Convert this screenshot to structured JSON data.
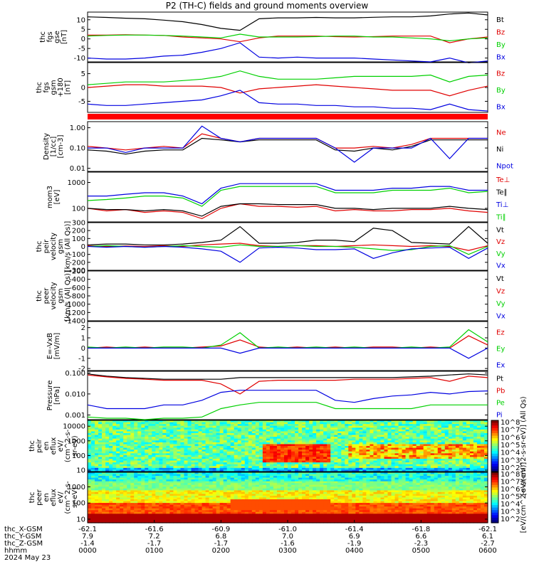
{
  "title": "P2 (TH-C) fields and ground moments overview",
  "chart_data": [
    {
      "id": "fgs_gse",
      "type": "line",
      "ylabel": [
        "thc",
        "fgs",
        "gse",
        "[nT]"
      ],
      "ylim": [
        -12,
        14
      ],
      "yticks": [
        {
          "v": 10,
          "label": "10"
        },
        {
          "v": 5,
          "label": "5"
        },
        {
          "v": 0,
          "label": "0"
        },
        {
          "v": -5,
          "label": "-5"
        },
        {
          "v": -10,
          "label": "-10"
        }
      ],
      "series": [
        {
          "name": "Bt",
          "color": "#000000",
          "values": [
            11.5,
            11.2,
            10.8,
            10.5,
            9.8,
            9.0,
            7.5,
            5.5,
            4.5,
            10.5,
            11.0,
            11.0,
            11.2,
            11.0,
            11.0,
            11.3,
            11.5,
            11.5,
            12.0,
            13.0,
            13.5,
            12.5
          ]
        },
        {
          "name": "Bz",
          "color": "#e00000",
          "values": [
            2.0,
            2.0,
            2.2,
            2.0,
            1.8,
            1.0,
            0.5,
            0.0,
            -1.5,
            0.5,
            1.5,
            1.5,
            1.5,
            1.2,
            1.0,
            1.2,
            1.5,
            1.5,
            1.5,
            -2.0,
            0.0,
            1.0
          ]
        },
        {
          "name": "By",
          "color": "#00d000",
          "values": [
            1.5,
            1.8,
            2.0,
            2.0,
            1.8,
            1.5,
            1.0,
            0.5,
            2.5,
            1.0,
            1.0,
            1.0,
            1.2,
            1.5,
            1.5,
            1.0,
            1.0,
            0.5,
            0.0,
            -1.0,
            0.0,
            0.5
          ]
        },
        {
          "name": "Bx",
          "color": "#0000e0",
          "values": [
            -10.0,
            -10.5,
            -10.5,
            -10.0,
            -9.0,
            -8.5,
            -7.0,
            -5.0,
            -2.0,
            -9.5,
            -10.0,
            -9.5,
            -10.0,
            -10.0,
            -10.0,
            -10.5,
            -11.0,
            -11.5,
            -12.0,
            -10.0,
            -12.5,
            -11.5
          ]
        }
      ]
    },
    {
      "id": "fgs_gsm",
      "type": "line",
      "ylabel": [
        "thc",
        "fgs",
        "gsm",
        "+180",
        "[nT]"
      ],
      "ylim": [
        -9,
        9
      ],
      "yticks": [
        {
          "v": 5,
          "label": "5"
        },
        {
          "v": 0,
          "label": "0"
        },
        {
          "v": -5,
          "label": "-5"
        }
      ],
      "series": [
        {
          "name": "Bz",
          "color": "#e00000",
          "values": [
            0.0,
            0.5,
            1.0,
            1.0,
            0.5,
            0.5,
            0.5,
            0.0,
            -2.0,
            -0.5,
            0.0,
            0.5,
            1.0,
            0.5,
            0.0,
            -0.5,
            -1.0,
            -1.0,
            -1.0,
            -3.0,
            -1.0,
            0.5
          ]
        },
        {
          "name": "By",
          "color": "#00d000",
          "values": [
            1.0,
            1.5,
            2.0,
            2.0,
            2.0,
            2.5,
            3.0,
            4.0,
            6.0,
            4.0,
            3.0,
            3.0,
            3.0,
            3.5,
            4.0,
            4.0,
            4.0,
            4.0,
            4.5,
            2.0,
            4.0,
            4.5
          ]
        },
        {
          "name": "Bx",
          "color": "#0000e0",
          "values": [
            -6.0,
            -6.5,
            -6.5,
            -6.0,
            -5.5,
            -5.0,
            -4.5,
            -3.0,
            -1.0,
            -5.5,
            -6.0,
            -6.0,
            -6.5,
            -6.5,
            -7.0,
            -7.0,
            -7.5,
            -7.5,
            -8.0,
            -6.0,
            -8.0,
            -8.5
          ]
        }
      ]
    },
    {
      "id": "density",
      "type": "line",
      "ylabel": [
        "Density",
        "[1/cc]",
        "[cm-3]"
      ],
      "yscale": "log",
      "ylim": [
        0.007,
        2.0
      ],
      "yticks": [
        {
          "v": 1.0,
          "label": "1.00"
        },
        {
          "v": 0.1,
          "label": "0.10"
        },
        {
          "v": 0.01,
          "label": "0.01"
        }
      ],
      "series": [
        {
          "name": "Ne",
          "color": "#e00000",
          "values": [
            0.12,
            0.1,
            0.08,
            0.1,
            0.12,
            0.1,
            0.5,
            0.3,
            0.2,
            0.3,
            0.3,
            0.3,
            0.3,
            0.1,
            0.1,
            0.12,
            0.1,
            0.15,
            0.3,
            0.3,
            0.3,
            0.3
          ]
        },
        {
          "name": "Ni",
          "color": "#000000",
          "values": [
            0.08,
            0.07,
            0.05,
            0.07,
            0.08,
            0.08,
            0.3,
            0.25,
            0.2,
            0.25,
            0.25,
            0.25,
            0.25,
            0.08,
            0.07,
            0.1,
            0.08,
            0.12,
            0.25,
            0.25,
            0.25,
            0.25
          ]
        },
        {
          "name": "Npot",
          "color": "#0000e0",
          "values": [
            0.1,
            0.1,
            0.06,
            0.1,
            0.1,
            0.1,
            1.2,
            0.3,
            0.2,
            0.3,
            0.3,
            0.3,
            0.3,
            0.1,
            0.02,
            0.1,
            0.1,
            0.1,
            0.3,
            0.03,
            0.3,
            0.3
          ]
        }
      ]
    },
    {
      "id": "temperature",
      "type": "line",
      "ylabel": [
        "mom3",
        "[eV]"
      ],
      "yscale": "log",
      "ylim": [
        30,
        2500
      ],
      "yticks": [
        {
          "v": 1000,
          "label": "1000"
        },
        {
          "v": 100,
          "label": "100"
        }
      ],
      "series": [
        {
          "name": "Te⊥",
          "color": "#e00000",
          "values": [
            100,
            80,
            90,
            70,
            80,
            70,
            40,
            100,
            150,
            120,
            120,
            110,
            120,
            80,
            90,
            80,
            80,
            90,
            90,
            100,
            80,
            70
          ]
        },
        {
          "name": "Te∥",
          "color": "#000000",
          "values": [
            100,
            90,
            90,
            80,
            90,
            80,
            50,
            120,
            150,
            150,
            140,
            140,
            140,
            100,
            100,
            90,
            100,
            100,
            100,
            120,
            100,
            90
          ]
        },
        {
          "name": "Ti⊥",
          "color": "#0000e0",
          "values": [
            300,
            300,
            350,
            400,
            400,
            300,
            150,
            600,
            900,
            900,
            900,
            900,
            900,
            500,
            500,
            500,
            600,
            600,
            700,
            700,
            500,
            500
          ]
        },
        {
          "name": "Ti∥",
          "color": "#00d000",
          "values": [
            200,
            220,
            250,
            300,
            300,
            250,
            120,
            500,
            700,
            700,
            700,
            700,
            700,
            400,
            400,
            400,
            500,
            500,
            500,
            600,
            400,
            450
          ]
        }
      ]
    },
    {
      "id": "peir_velocity",
      "type": "line",
      "ylabel": [
        "thc",
        "peir",
        "velocity",
        "gsm",
        "[km/s (All Qs)]"
      ],
      "ylim": [
        -300,
        300
      ],
      "yticks": [
        {
          "v": 300,
          "label": "300"
        },
        {
          "v": 200,
          "label": "200"
        },
        {
          "v": 100,
          "label": "100"
        },
        {
          "v": 0,
          "label": "0"
        },
        {
          "v": -100,
          "label": "-100"
        },
        {
          "v": -200,
          "label": "-200"
        },
        {
          "v": -300,
          "label": "-300"
        }
      ],
      "series": [
        {
          "name": "Vt",
          "color": "#000000",
          "values": [
            20,
            30,
            30,
            20,
            20,
            30,
            50,
            80,
            250,
            40,
            40,
            50,
            80,
            80,
            60,
            230,
            200,
            50,
            40,
            30,
            250,
            40
          ]
        },
        {
          "name": "Vz",
          "color": "#e00000",
          "values": [
            10,
            0,
            5,
            0,
            10,
            0,
            20,
            30,
            40,
            10,
            0,
            10,
            10,
            0,
            10,
            20,
            10,
            0,
            10,
            0,
            -50,
            10
          ]
        },
        {
          "name": "Vy",
          "color": "#00d000",
          "values": [
            0,
            10,
            0,
            -10,
            0,
            10,
            0,
            -10,
            20,
            0,
            0,
            10,
            0,
            0,
            -10,
            -30,
            -50,
            -40,
            0,
            10,
            -100,
            0
          ]
        },
        {
          "name": "Vx",
          "color": "#0000e0",
          "values": [
            0,
            -10,
            0,
            -10,
            0,
            -10,
            -30,
            -60,
            -200,
            -20,
            -10,
            -20,
            -40,
            -40,
            -30,
            -150,
            -80,
            -30,
            -20,
            -10,
            -150,
            -20
          ]
        }
      ]
    },
    {
      "id": "peer_velocity",
      "type": "line",
      "ylabel": [
        "thc",
        "peer",
        "velocity",
        "gsm",
        "[km/s (All Qs)]"
      ],
      "ylim": [
        -1400,
        -200
      ],
      "yticks": [
        {
          "v": -200,
          "label": "-200"
        },
        {
          "v": -400,
          "label": "-400"
        },
        {
          "v": -600,
          "label": "-600"
        },
        {
          "v": -800,
          "label": "-800"
        },
        {
          "v": -1000,
          "label": "-1000"
        },
        {
          "v": -1200,
          "label": "-1200"
        },
        {
          "v": -1400,
          "label": "-1400"
        }
      ],
      "series": [
        {
          "name": "Vt",
          "color": "#000000",
          "values": []
        },
        {
          "name": "Vz",
          "color": "#e00000",
          "values": []
        },
        {
          "name": "Vy",
          "color": "#00d000",
          "values": []
        },
        {
          "name": "Vx",
          "color": "#0000e0",
          "values": []
        }
      ]
    },
    {
      "id": "efield",
      "type": "line",
      "ylabel": [
        "E=-VxB",
        "[mV/m]"
      ],
      "ylim": [
        -2.2,
        2.6
      ],
      "yticks": [
        {
          "v": 2,
          "label": "2"
        },
        {
          "v": 1,
          "label": "1"
        },
        {
          "v": 0,
          "label": "0"
        },
        {
          "v": -1,
          "label": "-1"
        },
        {
          "v": -2,
          "label": "-2"
        }
      ],
      "series": [
        {
          "name": "Ez",
          "color": "#e00000",
          "values": [
            0.0,
            0.1,
            0.0,
            0.1,
            0.0,
            0.0,
            0.1,
            0.2,
            0.8,
            0.1,
            0.0,
            0.1,
            0.0,
            0.1,
            0.0,
            0.1,
            0.1,
            0.0,
            0.1,
            0.0,
            1.2,
            0.3
          ]
        },
        {
          "name": "Ey",
          "color": "#00d000",
          "values": [
            0.1,
            0.0,
            0.1,
            0.0,
            0.1,
            0.1,
            0.0,
            0.3,
            1.5,
            0.0,
            0.1,
            0.0,
            0.1,
            0.0,
            0.1,
            0.0,
            0.0,
            0.1,
            0.0,
            0.1,
            1.8,
            0.6
          ]
        },
        {
          "name": "Ex",
          "color": "#0000e0",
          "values": [
            0.0,
            0.0,
            0.0,
            0.0,
            0.0,
            0.0,
            0.0,
            0.0,
            -0.5,
            0.0,
            0.0,
            0.0,
            0.0,
            0.0,
            0.0,
            0.0,
            0.0,
            0.0,
            0.0,
            0.0,
            -1.0,
            0.0
          ]
        }
      ]
    },
    {
      "id": "pressure",
      "type": "line",
      "ylabel": [
        "Pressure",
        "[nPa]"
      ],
      "yscale": "log",
      "ylim": [
        0.0006,
        0.12
      ],
      "yticks": [
        {
          "v": 0.1,
          "label": "0.100"
        },
        {
          "v": 0.01,
          "label": "0.010"
        },
        {
          "v": 0.001,
          "label": "0.001"
        }
      ],
      "series": [
        {
          "name": "Pt",
          "color": "#000000",
          "values": [
            0.09,
            0.07,
            0.06,
            0.055,
            0.05,
            0.05,
            0.05,
            0.05,
            0.06,
            0.06,
            0.06,
            0.06,
            0.06,
            0.06,
            0.06,
            0.06,
            0.06,
            0.065,
            0.07,
            0.08,
            0.09,
            0.08
          ]
        },
        {
          "name": "Pb",
          "color": "#e00000",
          "values": [
            0.08,
            0.065,
            0.055,
            0.05,
            0.045,
            0.045,
            0.045,
            0.03,
            0.01,
            0.04,
            0.045,
            0.045,
            0.045,
            0.045,
            0.05,
            0.05,
            0.05,
            0.055,
            0.06,
            0.04,
            0.07,
            0.06
          ]
        },
        {
          "name": "Pe",
          "color": "#00d000",
          "values": [
            0.0008,
            0.0007,
            0.0007,
            0.0006,
            0.0007,
            0.0007,
            0.0008,
            0.002,
            0.003,
            0.004,
            0.004,
            0.004,
            0.004,
            0.002,
            0.002,
            0.002,
            0.002,
            0.002,
            0.003,
            0.003,
            0.003,
            0.003
          ]
        },
        {
          "name": "Pi",
          "color": "#0000e0",
          "values": [
            0.003,
            0.002,
            0.002,
            0.002,
            0.003,
            0.003,
            0.005,
            0.012,
            0.015,
            0.015,
            0.015,
            0.015,
            0.015,
            0.005,
            0.004,
            0.006,
            0.008,
            0.009,
            0.012,
            0.01,
            0.013,
            0.014
          ]
        }
      ]
    },
    {
      "id": "peir_eflux",
      "type": "heatmap",
      "ylabel": [
        "thc",
        "peir",
        "en",
        "eflux",
        "eV/",
        "(cm^2-s-",
        "sr-eV)"
      ],
      "yscale": "log",
      "ylim": [
        8,
        25000
      ],
      "yticks": [
        {
          "v": 10000,
          "label": "10000"
        },
        {
          "v": 1000,
          "label": "1000"
        },
        {
          "v": 100,
          "label": "100"
        },
        {
          "v": 10,
          "label": "10"
        }
      ],
      "colorbar": {
        "label": "[eV/(cm^2-s-sr-eV)] (All Qs)",
        "ticks": [
          "10^8",
          "10^7",
          "10^6",
          "10^5",
          "10^4",
          "10^3",
          "10^2"
        ]
      }
    },
    {
      "id": "peer_eflux",
      "type": "heatmap",
      "ylabel": [
        "thc",
        "peer",
        "en",
        "eflux",
        "eV/",
        "(cm^2-s-",
        "sr-eV)"
      ],
      "yscale": "log",
      "ylim": [
        6,
        8000
      ],
      "yticks": [
        {
          "v": 1000,
          "label": "1000"
        },
        {
          "v": 100,
          "label": "100"
        },
        {
          "v": 10,
          "label": "10"
        }
      ],
      "colorbar": {
        "label": "[eV/(cm^2-s-sr-eV)]",
        "ticks": [
          "10^8",
          "10^7",
          "10^6",
          "10^5",
          "10^4",
          "10^3",
          "10^2"
        ]
      }
    }
  ],
  "footer": {
    "row_labels": [
      "thc_X-GSM",
      "thc_Y-GSM",
      "thc_Z-GSM",
      "hhmm",
      "2024 May 23"
    ],
    "columns": [
      {
        "x": "-62.1",
        "y": "7.9",
        "z": "-1.4",
        "hhmm": "0000"
      },
      {
        "x": "-61.6",
        "y": "7.2",
        "z": "-1.7",
        "hhmm": "0100"
      },
      {
        "x": "-60.9",
        "y": "6.8",
        "z": "-1.7",
        "hhmm": "0200"
      },
      {
        "x": "-61.0",
        "y": "7.0",
        "z": "-1.6",
        "hhmm": "0300"
      },
      {
        "x": "-61.4",
        "y": "6.9",
        "z": "-1.9",
        "hhmm": "0400"
      },
      {
        "x": "-61.8",
        "y": "6.6",
        "z": "-2.3",
        "hhmm": "0500"
      },
      {
        "x": "-62.1",
        "y": "6.1",
        "z": "-2.7",
        "hhmm": "0600"
      }
    ]
  }
}
